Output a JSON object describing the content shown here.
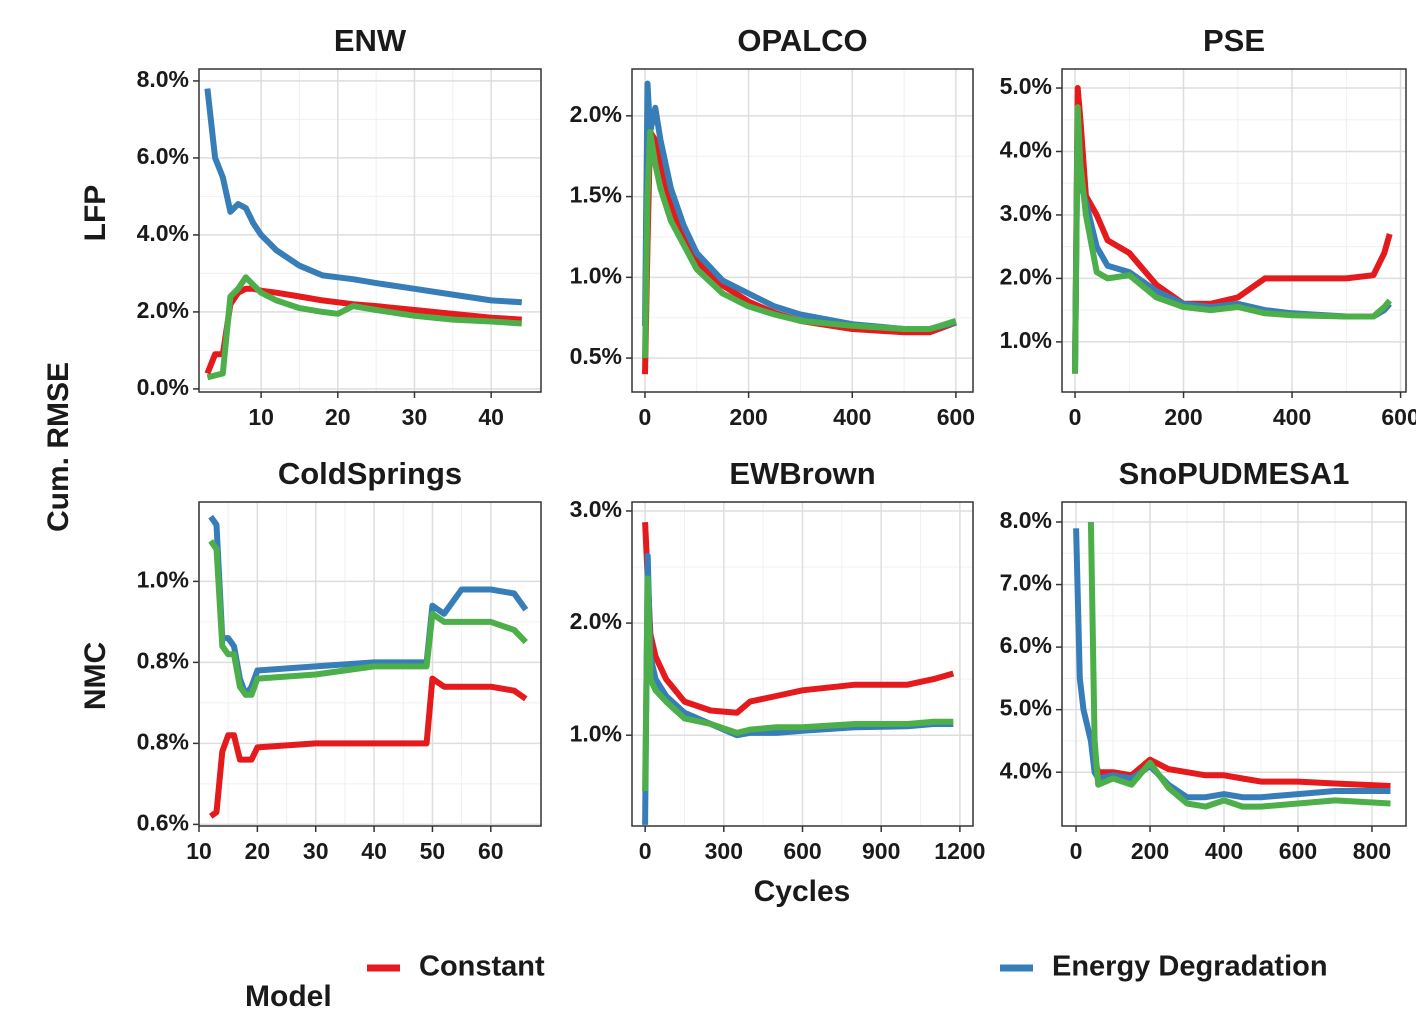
{
  "ylabel": "Cum. RMSE",
  "xlabel": "Cycles",
  "rows": [
    "LFP",
    "NMC"
  ],
  "legend_title": "Model",
  "models": [
    {
      "name": "Constant",
      "color": "#e41a1c"
    },
    {
      "name": "Energy Degradation",
      "color": "#377eb8"
    },
    {
      "color": "#4daf4a"
    }
  ],
  "chart_data": [
    {
      "type": "line",
      "title": "ENW",
      "grid": true,
      "x": [
        3,
        4,
        5,
        6,
        7,
        8,
        9,
        10,
        12,
        15,
        18,
        20,
        22,
        25,
        30,
        35,
        40,
        44
      ],
      "series": [
        {
          "values": [
            0.4,
            0.9,
            0.9,
            2.2,
            2.5,
            2.6,
            2.6,
            2.55,
            2.5,
            2.4,
            2.3,
            2.25,
            2.2,
            2.15,
            2.05,
            1.95,
            1.85,
            1.8
          ]
        },
        {
          "values": [
            7.8,
            6.0,
            5.5,
            4.6,
            4.8,
            4.7,
            4.3,
            4.0,
            3.6,
            3.2,
            2.95,
            2.9,
            2.85,
            2.75,
            2.6,
            2.45,
            2.3,
            2.25
          ]
        },
        {
          "values": [
            0.3,
            0.35,
            0.4,
            2.4,
            2.6,
            2.9,
            2.7,
            2.5,
            2.3,
            2.1,
            2.0,
            1.95,
            2.15,
            2.05,
            1.9,
            1.8,
            1.75,
            1.7
          ]
        }
      ],
      "xlim": [
        1.9,
        46.5
      ],
      "xticks": [
        10,
        20,
        30,
        40
      ],
      "ylim": [
        -0.08,
        8.31
      ],
      "yticks": [
        {
          "value": 0,
          "label": "0.0%"
        },
        {
          "value": 2,
          "label": "2.0%"
        },
        {
          "value": 4,
          "label": "4.0%"
        },
        {
          "value": 6,
          "label": "6.0%"
        },
        {
          "value": 8,
          "label": "8.0%"
        }
      ]
    },
    {
      "type": "line",
      "title": "OPALCO",
      "grid": true,
      "x": [
        0,
        5,
        10,
        20,
        30,
        50,
        75,
        100,
        150,
        200,
        250,
        300,
        400,
        500,
        550,
        600
      ],
      "series": [
        {
          "values": [
            0.4,
            1.2,
            1.9,
            1.85,
            1.7,
            1.45,
            1.25,
            1.1,
            0.95,
            0.85,
            0.78,
            0.73,
            0.68,
            0.66,
            0.66,
            0.72
          ]
        },
        {
          "values": [
            0.7,
            2.2,
            1.9,
            2.05,
            1.85,
            1.55,
            1.32,
            1.15,
            0.98,
            0.9,
            0.82,
            0.77,
            0.71,
            0.68,
            0.68,
            0.72
          ]
        },
        {
          "values": [
            0.5,
            1.5,
            1.9,
            1.7,
            1.55,
            1.35,
            1.2,
            1.05,
            0.9,
            0.82,
            0.77,
            0.73,
            0.7,
            0.68,
            0.68,
            0.73
          ]
        }
      ],
      "xlim": [
        -25,
        633
      ],
      "xticks": [
        0,
        200,
        400,
        600
      ],
      "ylim": [
        0.29,
        2.29
      ],
      "yticks": [
        {
          "value": 0.5,
          "label": "0.5%"
        },
        {
          "value": 1,
          "label": "1.0%"
        },
        {
          "value": 1.5,
          "label": "1.5%"
        },
        {
          "value": 2,
          "label": "2.0%"
        }
      ]
    },
    {
      "type": "line",
      "title": "PSE",
      "grid": true,
      "x": [
        0,
        5,
        10,
        20,
        40,
        60,
        100,
        150,
        200,
        250,
        300,
        350,
        400,
        500,
        550,
        570,
        580
      ],
      "series": [
        {
          "values": [
            0.5,
            5.0,
            4.5,
            3.3,
            3.0,
            2.6,
            2.4,
            1.9,
            1.6,
            1.6,
            1.7,
            2.0,
            2.0,
            2.0,
            2.05,
            2.4,
            2.7
          ]
        },
        {
          "values": [
            0.5,
            4.5,
            3.5,
            3.2,
            2.5,
            2.2,
            2.1,
            1.8,
            1.6,
            1.55,
            1.6,
            1.5,
            1.45,
            1.4,
            1.4,
            1.5,
            1.6
          ]
        },
        {
          "values": [
            0.5,
            4.7,
            3.8,
            3.0,
            2.1,
            2.0,
            2.05,
            1.7,
            1.55,
            1.5,
            1.55,
            1.45,
            1.42,
            1.4,
            1.4,
            1.55,
            1.65
          ]
        }
      ],
      "xlim": [
        -24,
        610
      ],
      "xticks": [
        0,
        200,
        400,
        600
      ],
      "ylim": [
        0.21,
        5.3
      ],
      "yticks": [
        {
          "value": 1,
          "label": "1.0%"
        },
        {
          "value": 2,
          "label": "2.0%"
        },
        {
          "value": 3,
          "label": "3.0%"
        },
        {
          "value": 4,
          "label": "4.0%"
        },
        {
          "value": 5,
          "label": "5.0%"
        }
      ]
    },
    {
      "type": "line",
      "title": "ColdSprings",
      "grid": true,
      "x": [
        12,
        13,
        14,
        15,
        16,
        17,
        18,
        19,
        20,
        30,
        40,
        49,
        50,
        52,
        55,
        60,
        64,
        66
      ],
      "series": [
        {
          "values": [
            0.66,
            0.665,
            0.74,
            0.76,
            0.76,
            0.73,
            0.73,
            0.73,
            0.745,
            0.75,
            0.75,
            0.75,
            0.83,
            0.82,
            0.82,
            0.82,
            0.815,
            0.805
          ]
        },
        {
          "values": [
            1.03,
            1.02,
            0.88,
            0.88,
            0.87,
            0.83,
            0.81,
            0.82,
            0.84,
            0.845,
            0.85,
            0.85,
            0.92,
            0.91,
            0.94,
            0.94,
            0.935,
            0.915
          ]
        },
        {
          "values": [
            1.0,
            0.99,
            0.87,
            0.86,
            0.86,
            0.82,
            0.81,
            0.81,
            0.83,
            0.835,
            0.845,
            0.845,
            0.91,
            0.9,
            0.9,
            0.9,
            0.89,
            0.875
          ]
        }
      ],
      "xlim": [
        10,
        68.6
      ],
      "xticks": [
        10,
        20,
        30,
        40,
        50,
        60
      ],
      "ylim": [
        0.648,
        1.048
      ],
      "yticks": [
        {
          "value": 0.65,
          "label": "0.6%"
        },
        {
          "value": 0.75,
          "label": "0.8%"
        },
        {
          "value": 0.85,
          "label": "0.8%"
        },
        {
          "value": 0.95,
          "label": "1.0%"
        }
      ]
    },
    {
      "type": "line",
      "title": "EWBrown",
      "grid": true,
      "x": [
        0,
        10,
        20,
        40,
        80,
        150,
        250,
        350,
        400,
        500,
        600,
        800,
        1000,
        1100,
        1175
      ],
      "series": [
        {
          "values": [
            2.9,
            2.4,
            1.9,
            1.7,
            1.5,
            1.3,
            1.22,
            1.2,
            1.3,
            1.35,
            1.4,
            1.45,
            1.45,
            1.5,
            1.55
          ]
        },
        {
          "values": [
            0.2,
            2.6,
            1.7,
            1.5,
            1.35,
            1.2,
            1.1,
            1.0,
            1.02,
            1.02,
            1.04,
            1.07,
            1.08,
            1.1,
            1.1
          ]
        },
        {
          "values": [
            0.5,
            2.4,
            1.5,
            1.4,
            1.3,
            1.15,
            1.1,
            1.02,
            1.05,
            1.07,
            1.07,
            1.1,
            1.1,
            1.12,
            1.12
          ]
        }
      ],
      "xlim": [
        -50,
        1250
      ],
      "xticks": [
        0,
        300,
        600,
        900,
        1200
      ],
      "ylim": [
        0.19,
        3.08
      ],
      "yticks": [
        {
          "value": 1,
          "label": "1.0%"
        },
        {
          "value": 2,
          "label": "2.0%"
        },
        {
          "value": 3,
          "label": "3.0%"
        }
      ]
    },
    {
      "type": "line",
      "title": "SnoPUDMESA1",
      "grid": true,
      "x": [
        0,
        10,
        20,
        40,
        50,
        60,
        100,
        150,
        200,
        250,
        300,
        350,
        400,
        450,
        500,
        600,
        700,
        850
      ],
      "series": [
        {
          "values": [
            null,
            null,
            null,
            null,
            4.2,
            4.0,
            4.0,
            3.95,
            4.2,
            4.05,
            4.0,
            3.95,
            3.95,
            3.9,
            3.85,
            3.85,
            3.82,
            3.78
          ]
        },
        {
          "values": [
            7.9,
            5.5,
            5.0,
            4.5,
            4.0,
            3.9,
            3.95,
            3.9,
            4.1,
            3.8,
            3.6,
            3.6,
            3.65,
            3.6,
            3.6,
            3.65,
            3.7,
            3.7
          ]
        },
        {
          "values": [
            null,
            null,
            null,
            8.0,
            4.5,
            3.8,
            3.9,
            3.8,
            4.15,
            3.75,
            3.5,
            3.45,
            3.55,
            3.45,
            3.45,
            3.5,
            3.55,
            3.5
          ]
        }
      ],
      "xlim": [
        -38,
        892
      ],
      "xticks": [
        0,
        200,
        400,
        600,
        800
      ],
      "ylim": [
        3.14,
        8.32
      ],
      "yticks": [
        {
          "value": 4,
          "label": "4.0%"
        },
        {
          "value": 5,
          "label": "5.0%"
        },
        {
          "value": 6,
          "label": "6.0%"
        },
        {
          "value": 7,
          "label": "7.0%"
        },
        {
          "value": 8,
          "label": "8.0%"
        }
      ]
    }
  ]
}
